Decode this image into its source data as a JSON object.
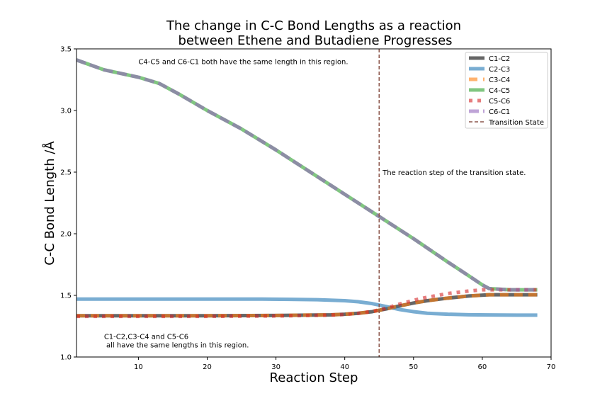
{
  "chart_data": {
    "type": "line",
    "title": [
      "The change in C-C Bond Lengths as a reaction",
      "between Ethene and Butadiene Progresses"
    ],
    "xlabel": "Reaction Step",
    "ylabel": "C-C Bond Length /Å",
    "xlim": [
      1,
      70
    ],
    "ylim": [
      1.0,
      3.5
    ],
    "xticks": [
      10,
      20,
      30,
      40,
      50,
      60,
      70
    ],
    "yticks": [
      1.0,
      1.5,
      2.0,
      2.5,
      3.0,
      3.5
    ],
    "grid": false,
    "legend_position": "top-right",
    "series": [
      {
        "name": "C1-C2",
        "color": "#555555",
        "style": "solid",
        "x": [
          1,
          10,
          20,
          30,
          38,
          40,
          42,
          44,
          46,
          48,
          50,
          52,
          55,
          58,
          61,
          65,
          68
        ],
        "y": [
          1.335,
          1.335,
          1.335,
          1.337,
          1.342,
          1.347,
          1.355,
          1.368,
          1.39,
          1.415,
          1.438,
          1.457,
          1.478,
          1.495,
          1.505,
          1.505,
          1.505
        ]
      },
      {
        "name": "C2-C3",
        "color": "#1f77b4",
        "style": "solid",
        "x": [
          1,
          10,
          20,
          28,
          32,
          36,
          40,
          42,
          44,
          46,
          48,
          50,
          52,
          55,
          58,
          61,
          65,
          68
        ],
        "y": [
          1.47,
          1.47,
          1.47,
          1.47,
          1.468,
          1.465,
          1.457,
          1.448,
          1.433,
          1.41,
          1.385,
          1.368,
          1.355,
          1.347,
          1.343,
          1.341,
          1.34,
          1.34
        ]
      },
      {
        "name": "C3-C4",
        "color": "#ff7f0e",
        "style": "dashed",
        "x": [
          1,
          10,
          20,
          30,
          38,
          40,
          42,
          44,
          46,
          48,
          50,
          52,
          55,
          58,
          61,
          65,
          68
        ],
        "y": [
          1.335,
          1.335,
          1.335,
          1.337,
          1.342,
          1.347,
          1.355,
          1.368,
          1.39,
          1.415,
          1.438,
          1.457,
          1.478,
          1.495,
          1.505,
          1.505,
          1.505
        ]
      },
      {
        "name": "C4-C5",
        "color": "#2ca02c",
        "style": "solid",
        "x": [
          1,
          5,
          10,
          13,
          16,
          20,
          25,
          30,
          35,
          40,
          45,
          50,
          55,
          58,
          60,
          61,
          64,
          68
        ],
        "y": [
          3.41,
          3.33,
          3.27,
          3.22,
          3.13,
          3.0,
          2.85,
          2.68,
          2.5,
          2.32,
          2.14,
          1.96,
          1.77,
          1.66,
          1.585,
          1.555,
          1.545,
          1.545
        ]
      },
      {
        "name": "C5-C6",
        "color": "#d62728",
        "style": "dotted",
        "x": [
          1,
          10,
          20,
          30,
          38,
          40,
          42,
          44,
          46,
          48,
          50,
          52,
          55,
          58,
          60,
          62,
          65,
          68
        ],
        "y": [
          1.33,
          1.33,
          1.33,
          1.333,
          1.34,
          1.345,
          1.355,
          1.37,
          1.395,
          1.43,
          1.46,
          1.485,
          1.515,
          1.535,
          1.545,
          1.545,
          1.545,
          1.545
        ]
      },
      {
        "name": "C6-C1",
        "color": "#9467bd",
        "style": "dashed",
        "x": [
          1,
          5,
          10,
          13,
          16,
          20,
          25,
          30,
          35,
          40,
          45,
          50,
          55,
          58,
          60,
          61,
          64,
          68
        ],
        "y": [
          3.41,
          3.33,
          3.27,
          3.22,
          3.13,
          3.0,
          2.85,
          2.68,
          2.5,
          2.32,
          2.14,
          1.96,
          1.77,
          1.66,
          1.585,
          1.555,
          1.545,
          1.545
        ]
      }
    ],
    "vline": {
      "name": "Transition State",
      "x": 45,
      "color": "#8c564b",
      "style": "dashed"
    },
    "annotations": [
      {
        "text": "C4-C5 and C6-C1 both have the same length in this region.",
        "x": 10,
        "y": 3.4
      },
      {
        "text": "The reaction step of the transition state.",
        "x": 45.5,
        "y": 2.5
      },
      {
        "text": "C1-C2,C3-C4 and C5-C6",
        "x": 5,
        "y": 1.17
      },
      {
        "text": " all have the same lengths in this region.",
        "x": 5,
        "y": 1.1
      }
    ]
  }
}
